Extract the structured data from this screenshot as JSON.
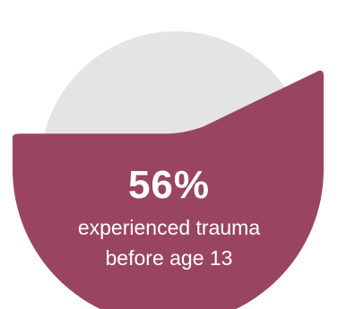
{
  "chart_data": {
    "type": "pie",
    "slices": [
      {
        "value": 56,
        "color": "#9A4560"
      },
      {
        "value": 44,
        "color": "#E4E4E6"
      }
    ]
  },
  "stat": {
    "value": "56%",
    "line1": "experienced trauma",
    "line2": "before age 13"
  }
}
